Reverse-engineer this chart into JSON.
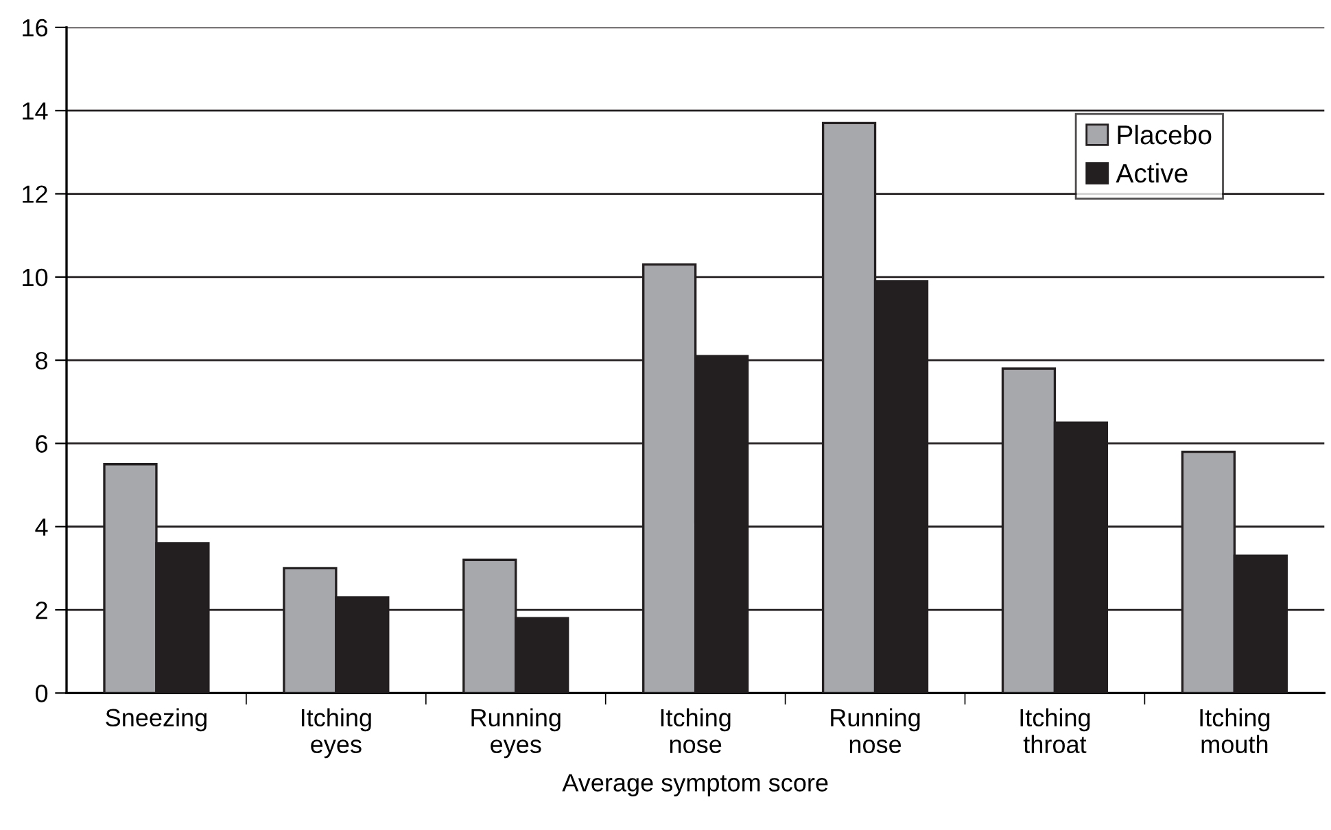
{
  "chart_data": {
    "type": "bar",
    "xlabel": "Average symptom score",
    "categories": [
      "Sneezing",
      "Itching\neyes",
      "Running\neyes",
      "Itching\nnose",
      "Running\nnose",
      "Itching\nthroat",
      "Itching\nmouth"
    ],
    "series": [
      {
        "name": "Placebo",
        "color": "#a7a8ab",
        "values": [
          5.5,
          3.0,
          3.2,
          10.3,
          13.7,
          7.8,
          5.8
        ]
      },
      {
        "name": "Active",
        "color": "#231f20",
        "values": [
          3.6,
          2.3,
          1.8,
          8.1,
          9.9,
          6.5,
          3.3
        ]
      }
    ],
    "ylim": [
      0,
      16
    ],
    "yticks": [
      0,
      2,
      4,
      6,
      8,
      10,
      12,
      14,
      16
    ],
    "grid": "y",
    "legend": "top right"
  }
}
